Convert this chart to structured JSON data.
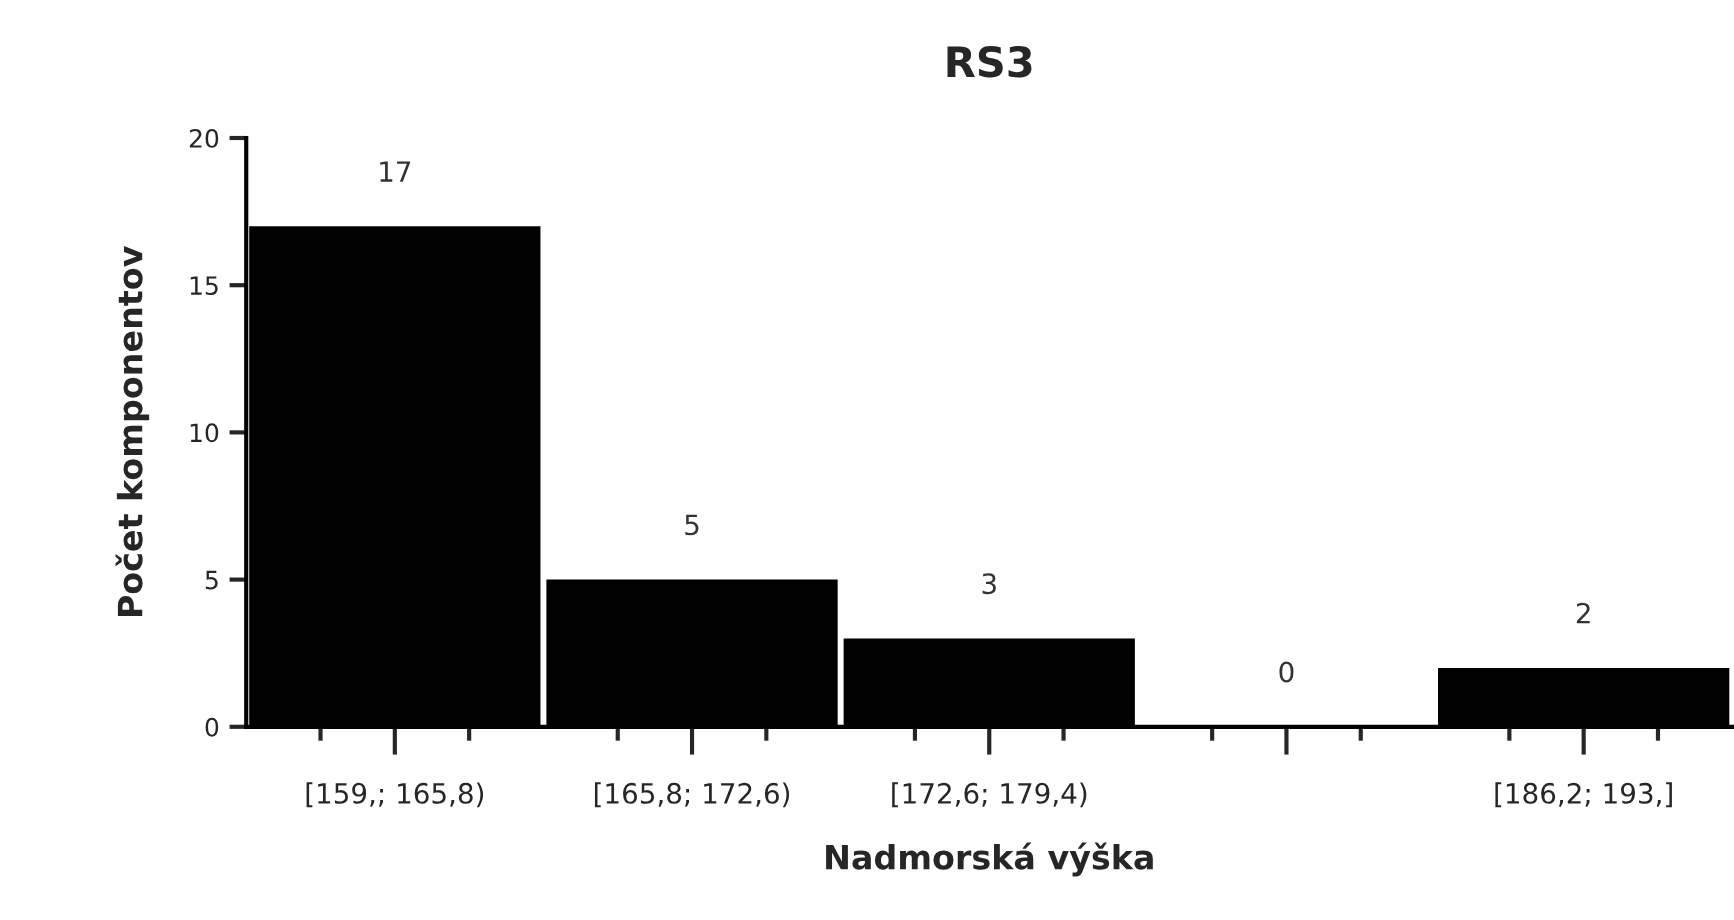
{
  "chart_data": {
    "type": "bar",
    "title": "RS3",
    "xlabel": "Nadmorská výška",
    "ylabel": "Počet komponentov",
    "categories": [
      "[159,; 165,8)",
      "[165,8; 172,6)",
      "[172,6; 179,4)",
      null,
      "[186,2; 193,]"
    ],
    "values": [
      17,
      5,
      3,
      0,
      2
    ],
    "color": "#000000",
    "data_labels": true,
    "ylim": [
      0,
      20
    ],
    "yticks": [
      0,
      5,
      10,
      15,
      20
    ],
    "grid": false,
    "legend": false
  }
}
